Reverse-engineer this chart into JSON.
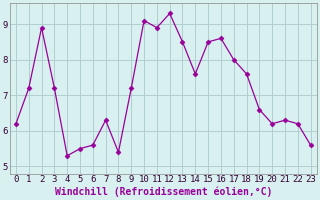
{
  "x": [
    0,
    1,
    2,
    3,
    4,
    5,
    6,
    7,
    8,
    9,
    10,
    11,
    12,
    13,
    14,
    15,
    16,
    17,
    18,
    19,
    20,
    21,
    22,
    23
  ],
  "y": [
    6.2,
    7.2,
    8.9,
    7.2,
    5.3,
    5.5,
    5.6,
    6.3,
    5.4,
    7.2,
    9.1,
    8.9,
    9.3,
    8.5,
    7.6,
    8.5,
    8.6,
    8.0,
    7.6,
    6.6,
    6.2,
    6.3,
    6.2,
    5.6
  ],
  "line_color": "#990099",
  "marker": "D",
  "marker_size": 2.5,
  "bg_color": "#d8f0f0",
  "grid_color": "#b0cece",
  "xlabel": "Windchill (Refroidissement éolien,°C)",
  "xlabel_color": "#990099",
  "xlabel_fontsize": 7,
  "tick_label_fontsize": 6.5,
  "ylim": [
    4.8,
    9.6
  ],
  "yticks": [
    5,
    6,
    7,
    8,
    9
  ],
  "xticks": [
    0,
    1,
    2,
    3,
    4,
    5,
    6,
    7,
    8,
    9,
    10,
    11,
    12,
    13,
    14,
    15,
    16,
    17,
    18,
    19,
    20,
    21,
    22,
    23
  ]
}
